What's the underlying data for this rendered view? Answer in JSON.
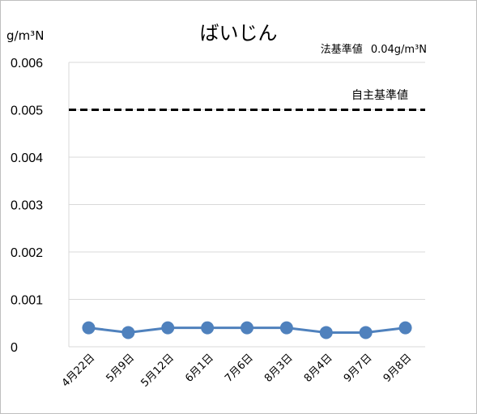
{
  "chart_data": {
    "type": "line",
    "title": "ばいじん",
    "ylabel": "g/m³N",
    "legal_standard": {
      "label": "法基準値",
      "value_text": "0.04g/m³N"
    },
    "voluntary_standard": {
      "label": "自主基準値",
      "value": 0.005,
      "line_color": "#000000",
      "line_style": "dashed"
    },
    "categories": [
      "4月22日",
      "5月9日",
      "5月12日",
      "6月1日",
      "7月6日",
      "8月3日",
      "8月4日",
      "9月7日",
      "9月8日"
    ],
    "series": [
      {
        "values": [
          0.0004,
          0.0003,
          0.0004,
          0.0004,
          0.0004,
          0.0004,
          0.0003,
          0.0003,
          0.0004
        ],
        "color": "#4f81bd"
      }
    ],
    "ylim": [
      0,
      0.006
    ],
    "yticks": [
      {
        "value": 0,
        "label": "0"
      },
      {
        "value": 0.001,
        "label": "0.001"
      },
      {
        "value": 0.002,
        "label": "0.002"
      },
      {
        "value": 0.003,
        "label": "0.003"
      },
      {
        "value": 0.004,
        "label": "0.004"
      },
      {
        "value": 0.005,
        "label": "0.005"
      },
      {
        "value": 0.006,
        "label": "0.006"
      }
    ],
    "grid": true,
    "gridline_color": "#d9d9d9",
    "legend": "none"
  }
}
